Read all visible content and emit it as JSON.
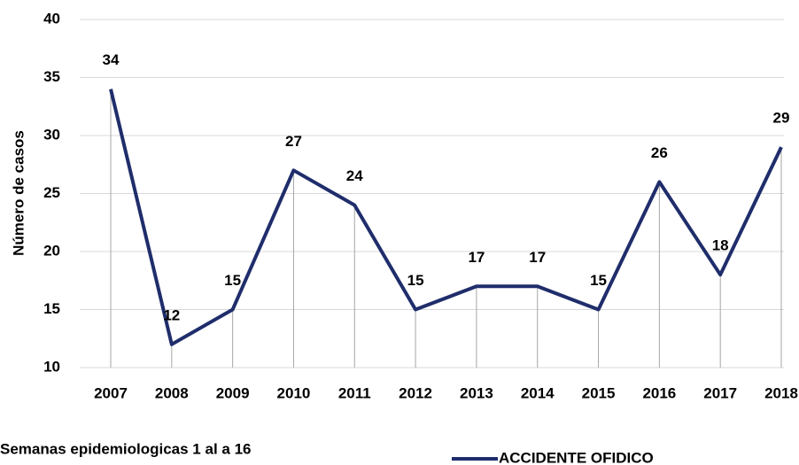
{
  "chart_data": {
    "type": "line",
    "y_axis_label": "Número de casos",
    "x_axis_label": "Semanas epidemiologicas 1 al a 16",
    "categories": [
      "2007",
      "2008",
      "2009",
      "2010",
      "2011",
      "2012",
      "2013",
      "2014",
      "2015",
      "2016",
      "2017",
      "2018"
    ],
    "series": [
      {
        "name": "ACCIDENTE OFIDICO",
        "color": "#1f2d6b",
        "values": [
          34,
          12,
          15,
          27,
          24,
          15,
          17,
          17,
          15,
          26,
          18,
          29
        ]
      }
    ],
    "ylim": [
      10,
      40
    ],
    "yticks": [
      10,
      15,
      20,
      25,
      30,
      35,
      40
    ],
    "grid": true,
    "legend": "bottom"
  }
}
